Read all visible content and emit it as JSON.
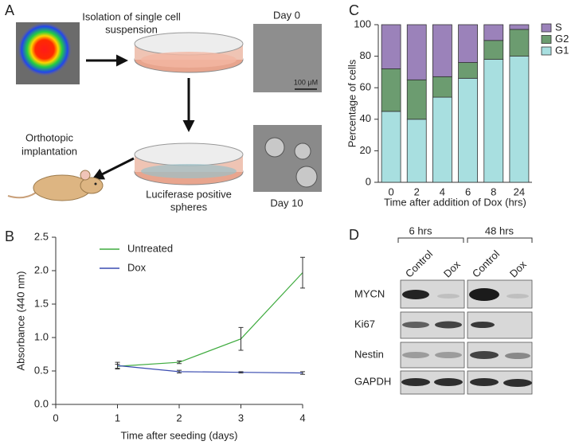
{
  "panel_labels": [
    "A",
    "B",
    "C",
    "D"
  ],
  "diagram": {
    "isolation": [
      "Isolation of single cell",
      "suspension"
    ],
    "day0": "Day 0",
    "scale_bar": "100 μM",
    "implantation": [
      "Orthotopic",
      "implantation"
    ],
    "spheres": [
      "Luciferase positive",
      "spheres"
    ],
    "day10": "Day 10"
  },
  "chart_data": [
    {
      "type": "line",
      "x_label": "Time after seeding (days)",
      "y_label": "Absorbance (440 nm)",
      "x": [
        1,
        2,
        3,
        4
      ],
      "xlim": [
        0,
        4
      ],
      "xticks": [
        0,
        1,
        2,
        3,
        4
      ],
      "ylim": [
        0,
        2.5
      ],
      "yticks": [
        {
          "value": 0,
          "label": "0.0"
        },
        0.5,
        {
          "value": 1,
          "label": "1.0"
        },
        1.5,
        {
          "value": 2,
          "label": "2.0"
        },
        2.5
      ],
      "legend": "upper left",
      "series": [
        {
          "name": "Untreated",
          "color": "#3fab3f",
          "values": [
            0.57,
            0.63,
            0.98,
            1.97
          ],
          "errors": [
            0.03,
            0.02,
            0.17,
            0.23
          ]
        },
        {
          "name": "Dox",
          "color": "#3a4cb0",
          "values": [
            0.58,
            0.49,
            0.48,
            0.47
          ],
          "errors": [
            0.05,
            0.02,
            0.01,
            0.02
          ]
        }
      ]
    },
    {
      "type": "stacked_bar",
      "x_label": "Time after addition of Dox (hrs)",
      "y_label": "Percentage of cells",
      "categories": [
        "0",
        "2",
        "4",
        "6",
        "8",
        "24"
      ],
      "ylim": [
        0,
        100
      ],
      "yticks": [
        0,
        20,
        40,
        60,
        80,
        100
      ],
      "legend": "right",
      "series": [
        {
          "name": "G1",
          "color": "#a8dfe0",
          "values": [
            45,
            40,
            54,
            66,
            78,
            80
          ]
        },
        {
          "name": "G2",
          "color": "#6c9c70",
          "values": [
            27,
            25,
            13,
            10,
            12,
            17
          ]
        },
        {
          "name": "S",
          "color": "#9b82ba",
          "values": [
            28,
            35,
            33,
            24,
            10,
            3
          ]
        }
      ]
    }
  ],
  "blot": {
    "timepoints": [
      "6 hrs",
      "48 hrs"
    ],
    "lanes": [
      "Control",
      "Dox",
      "Control",
      "Dox"
    ],
    "proteins": [
      "MYCN",
      "Ki67",
      "Nestin",
      "GAPDH"
    ]
  }
}
